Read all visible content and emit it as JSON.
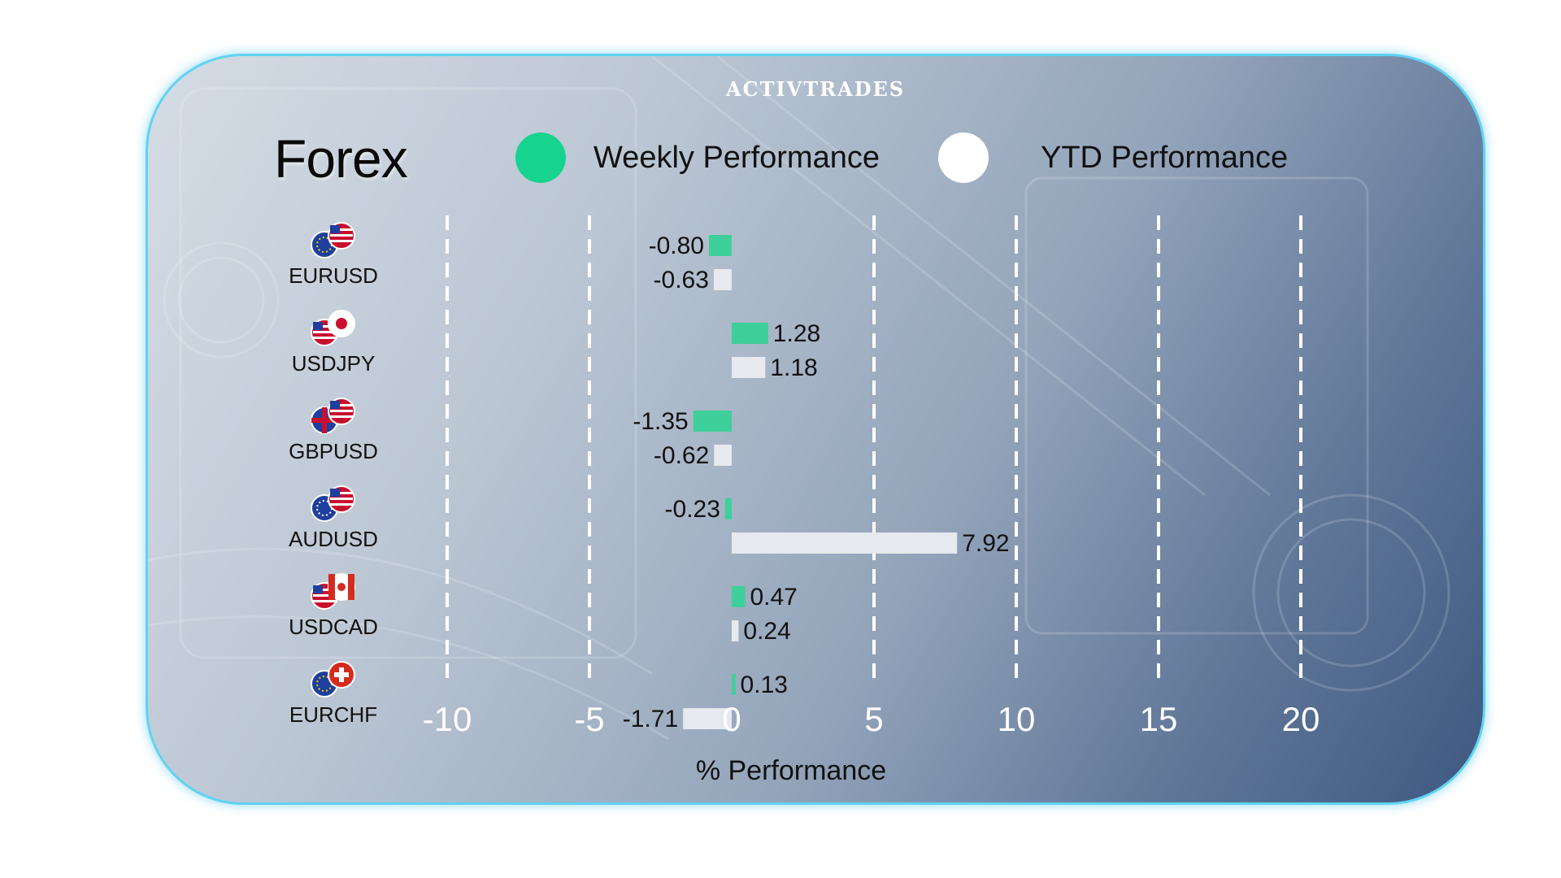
{
  "brand": {
    "logo_text": "ACTIVTRADES"
  },
  "colors": {
    "weekly": "#3ecf9a",
    "ytd": "#e6e9ee",
    "legend_weekly": "#16d38f",
    "legend_ytd": "#ffffff",
    "border": "#5fd3f3"
  },
  "chart_data": {
    "type": "bar",
    "orientation": "horizontal",
    "title": "Forex",
    "xlabel": "% Performance",
    "ylabel": "",
    "xlim": [
      -10,
      20
    ],
    "xticks": [
      -10,
      -5,
      0,
      5,
      10,
      15,
      20
    ],
    "grid": "vertical-dashed",
    "legend_placement": "top",
    "categories": [
      "EURUSD",
      "USDJPY",
      "GBPUSD",
      "AUDUSD",
      "USDCAD",
      "EURCHF"
    ],
    "icons": [
      "eu-us-flags-icon",
      "us-jp-flags-icon",
      "gb-us-flags-icon",
      "au-us-flags-icon",
      "us-ca-flags-icon",
      "eu-ch-flags-icon"
    ],
    "series": [
      {
        "name": "Weekly Performance",
        "values": [
          -0.8,
          1.28,
          -1.35,
          -0.23,
          0.47,
          0.13
        ],
        "labels": [
          "-0.80",
          "1.28",
          "-1.35",
          "-0.23",
          "0.47",
          "0.13"
        ]
      },
      {
        "name": "YTD Performance",
        "values": [
          -0.63,
          1.18,
          -0.62,
          7.92,
          0.24,
          -1.71
        ],
        "labels": [
          "-0.63",
          "1.18",
          "-0.62",
          "7.92",
          "0.24",
          "-1.71"
        ]
      }
    ]
  }
}
